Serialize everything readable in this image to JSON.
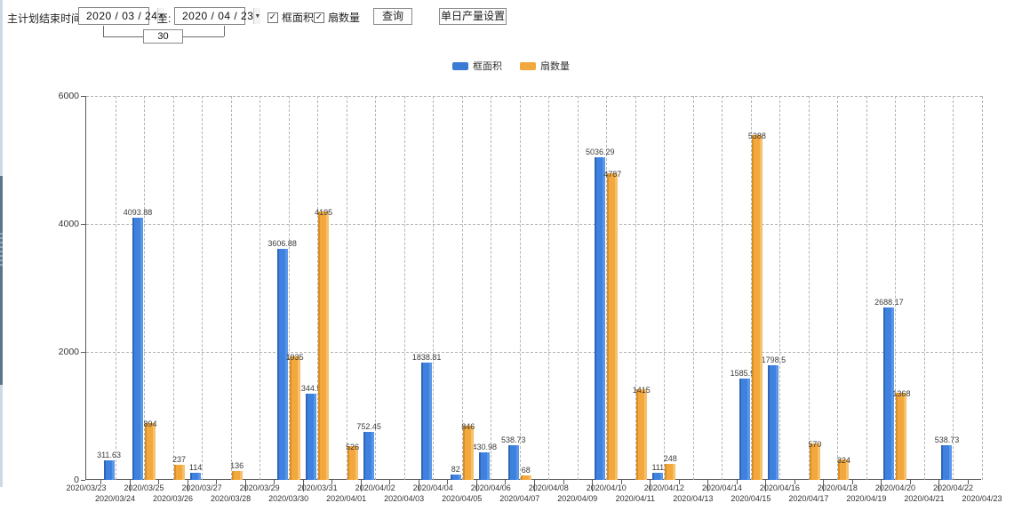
{
  "toolbar": {
    "label": "主计划结束时间:",
    "date_from": "2020 / 03 / 24",
    "to_label": "至:",
    "date_to": "2020 / 04 / 23",
    "interval_days": "30",
    "checkbox_area": "框面积",
    "checkbox_fan": "扇数量",
    "query_button": "查询",
    "daily_output_button": "单日产量设置",
    "dropdown_arrow": "▼",
    "check_glyph": "✓"
  },
  "legend": [
    {
      "label": "框面积",
      "color": "#3a7bd5"
    },
    {
      "label": "扇数量",
      "color": "#f2a83c"
    }
  ],
  "chart_data": {
    "type": "bar",
    "title": "",
    "xlabel": "",
    "ylabel": "",
    "ylim": [
      0,
      6000
    ],
    "yticks": [
      0,
      2000,
      4000,
      6000
    ],
    "grid": "dashed",
    "legend_position": "top",
    "categories": [
      "2020/03/23",
      "2020/03/24",
      "2020/03/25",
      "2020/03/26",
      "2020/03/27",
      "2020/03/28",
      "2020/03/29",
      "2020/03/30",
      "2020/03/31",
      "2020/04/01",
      "2020/04/02",
      "2020/04/03",
      "2020/04/04",
      "2020/04/05",
      "2020/04/06",
      "2020/04/07",
      "2020/04/08",
      "2020/04/09",
      "2020/04/10",
      "2020/04/11",
      "2020/04/12",
      "2020/04/13",
      "2020/04/14",
      "2020/04/15",
      "2020/04/16",
      "2020/04/17",
      "2020/04/18",
      "2020/04/19",
      "2020/04/20",
      "2020/04/21",
      "2020/04/22",
      "2020/04/23"
    ],
    "series": [
      {
        "name": "框面积",
        "color": "#3a7bd5",
        "values": [
          null,
          311.63,
          4093.88,
          null,
          114,
          null,
          null,
          3606.88,
          1344.95,
          null,
          752.45,
          null,
          1838.81,
          82,
          430.98,
          538.73,
          null,
          null,
          5036.29,
          null,
          111,
          null,
          null,
          1585.96,
          1798.5,
          null,
          null,
          null,
          2688.17,
          null,
          538.73,
          null
        ]
      },
      {
        "name": "扇数量",
        "color": "#f2a83c",
        "values": [
          null,
          null,
          894,
          237,
          null,
          136,
          null,
          1935,
          4195,
          526,
          null,
          null,
          null,
          846,
          null,
          68,
          null,
          null,
          4787,
          1415,
          248,
          null,
          null,
          5388,
          null,
          570,
          324,
          null,
          1368,
          null,
          null,
          null
        ]
      }
    ]
  }
}
